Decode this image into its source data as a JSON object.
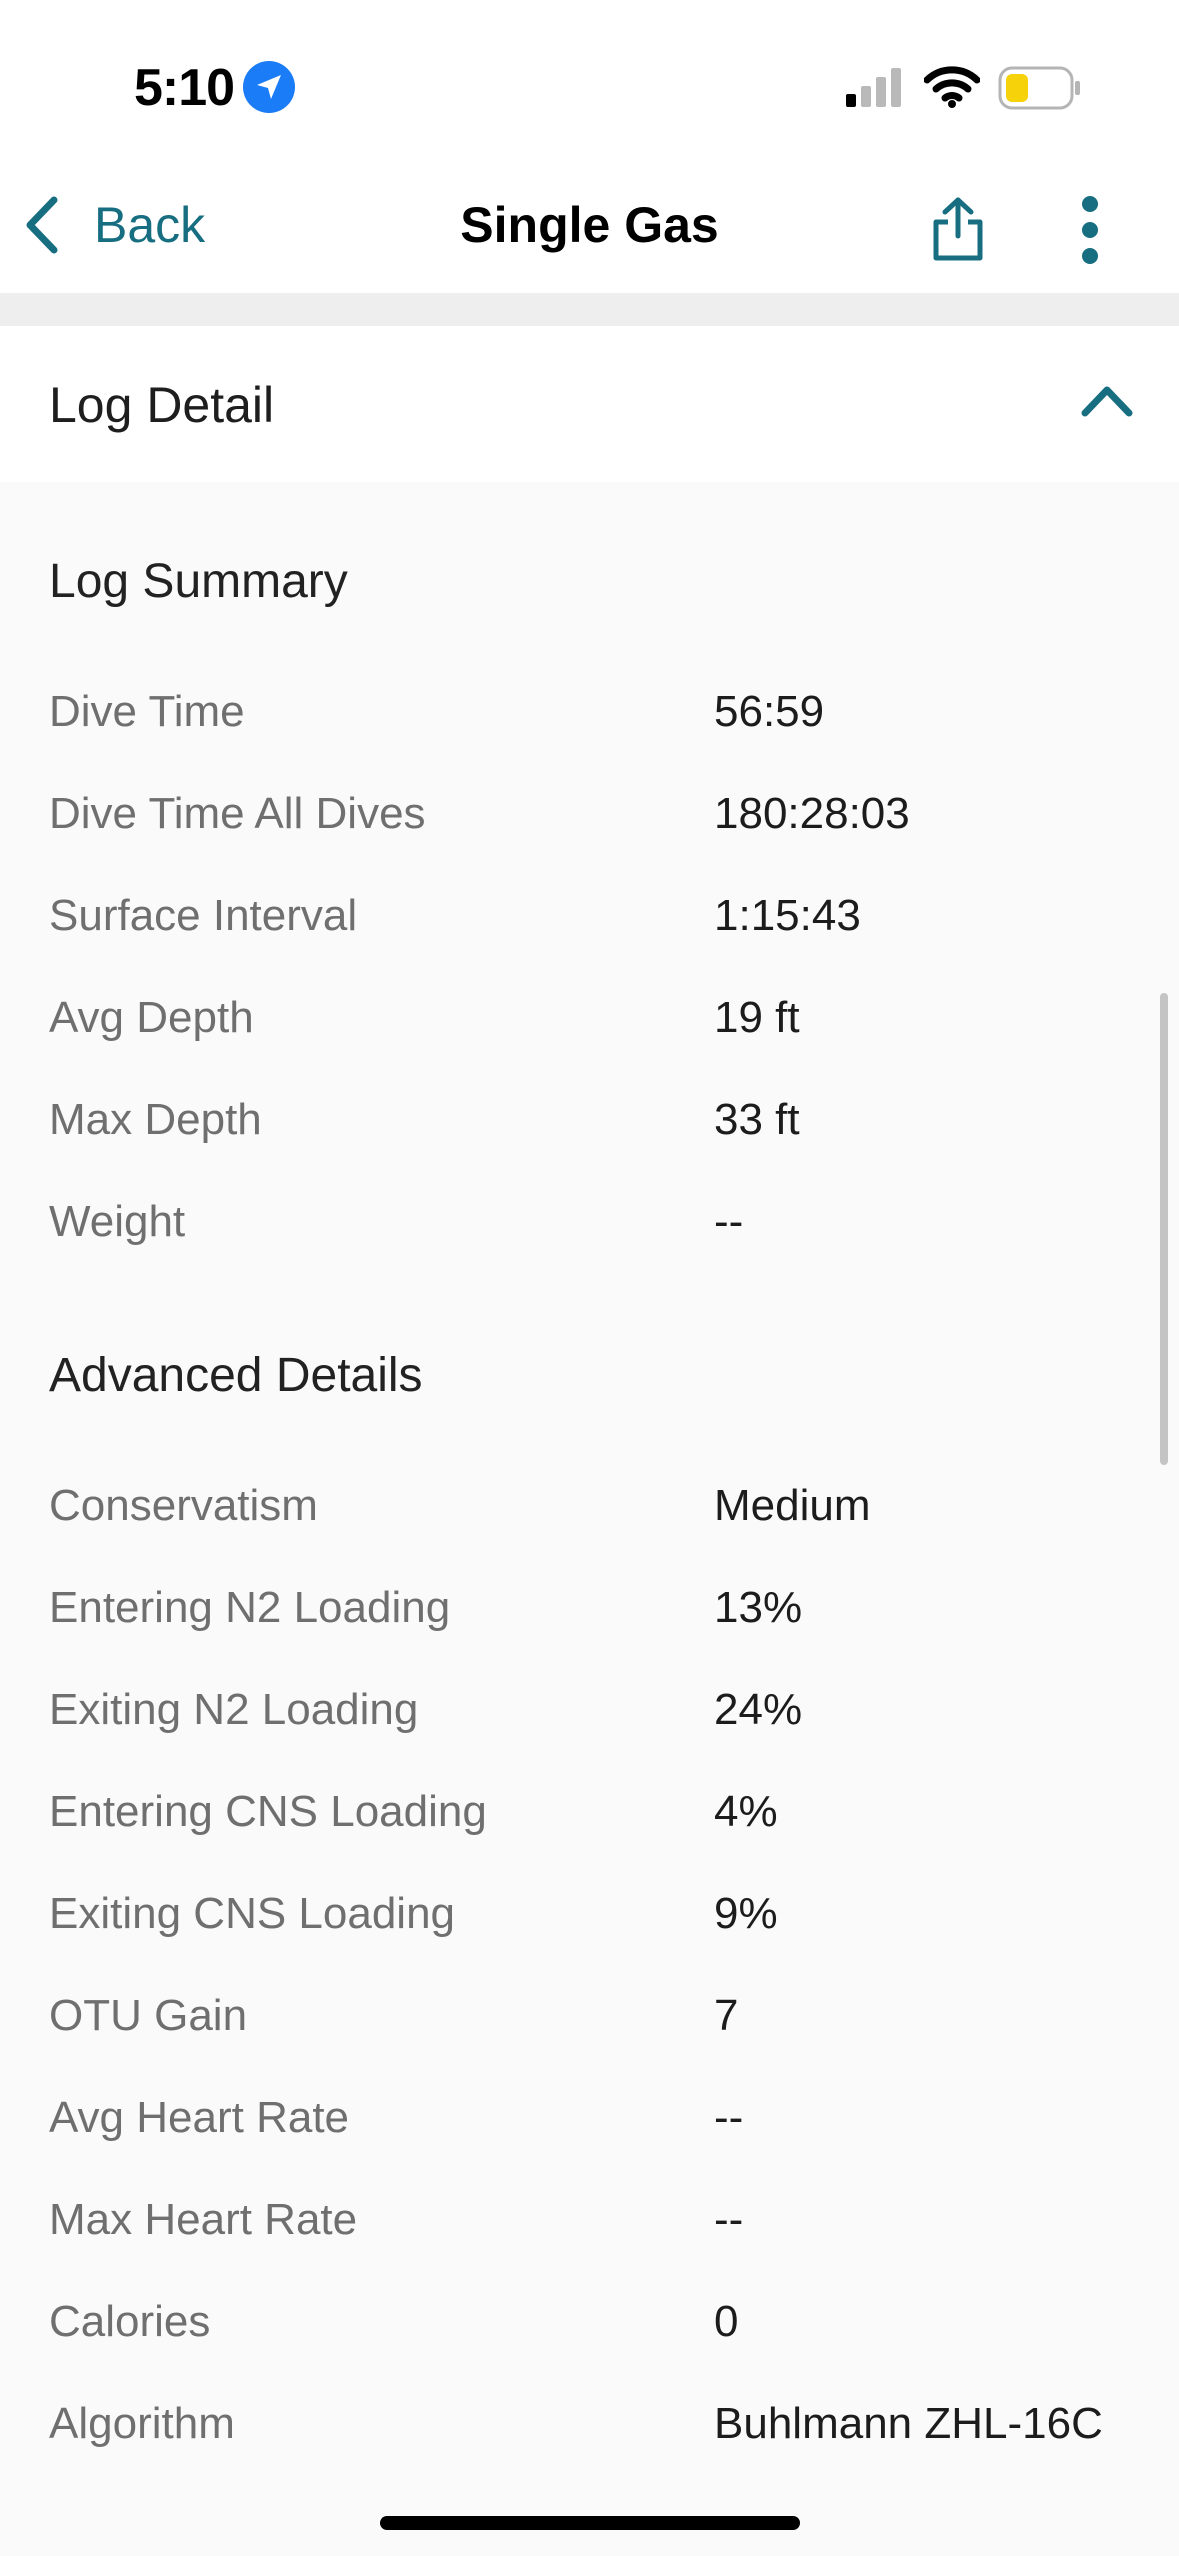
{
  "status_bar": {
    "time": "5:10",
    "battery_color": "#f5d20a"
  },
  "nav": {
    "back_label": "Back",
    "title": "Single Gas",
    "accent_color": "#176e80"
  },
  "section": {
    "title": "Log Detail"
  },
  "log_summary": {
    "title": "Log Summary",
    "rows": [
      {
        "label": "Dive Time",
        "value": "56:59"
      },
      {
        "label": "Dive Time All Dives",
        "value": "180:28:03"
      },
      {
        "label": "Surface Interval",
        "value": "1:15:43"
      },
      {
        "label": "Avg Depth",
        "value": "19 ft"
      },
      {
        "label": "Max Depth",
        "value": "33 ft"
      },
      {
        "label": "Weight",
        "value": "--"
      }
    ]
  },
  "advanced_details": {
    "title": "Advanced Details",
    "rows": [
      {
        "label": "Conservatism",
        "value": "Medium"
      },
      {
        "label": "Entering N2 Loading",
        "value": "13%"
      },
      {
        "label": "Exiting N2 Loading",
        "value": "24%"
      },
      {
        "label": "Entering CNS Loading",
        "value": "4%"
      },
      {
        "label": "Exiting CNS Loading",
        "value": "9%"
      },
      {
        "label": "OTU Gain",
        "value": "7"
      },
      {
        "label": "Avg Heart Rate",
        "value": "--"
      },
      {
        "label": "Max Heart Rate",
        "value": "--"
      },
      {
        "label": "Calories",
        "value": "0"
      },
      {
        "label": "Algorithm",
        "value": "Buhlmann ZHL-16C"
      }
    ]
  }
}
